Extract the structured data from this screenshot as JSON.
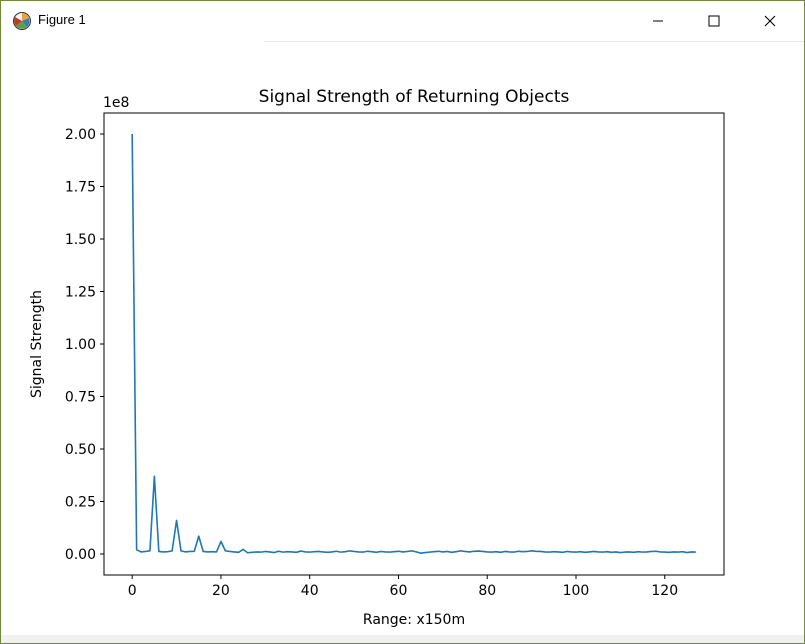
{
  "window": {
    "title": "Figure 1",
    "icons": {
      "app": "matplotlib-figure-icon",
      "minimize": "minimize-icon",
      "maximize": "maximize-icon",
      "close": "close-icon"
    }
  },
  "chart_data": {
    "type": "line",
    "title": "Signal Strength of Returning Objects",
    "xlabel": "Range: x150m",
    "ylabel": "Signal Strength",
    "y_offset_label": "1e8",
    "xlim": [
      -6.35,
      133.35
    ],
    "ylim": [
      -10000000,
      210000000
    ],
    "x_ticks": [
      0,
      20,
      40,
      60,
      80,
      100,
      120
    ],
    "x_tick_labels": [
      "0",
      "20",
      "40",
      "60",
      "80",
      "100",
      "120"
    ],
    "y_ticks": [
      0,
      25000000,
      50000000,
      75000000,
      100000000,
      125000000,
      150000000,
      175000000,
      200000000
    ],
    "y_tick_labels": [
      "0.00",
      "0.25",
      "0.50",
      "0.75",
      "1.00",
      "1.25",
      "1.50",
      "1.75",
      "2.00"
    ],
    "grid": false,
    "line_color": "#1f77b4",
    "series": [
      {
        "x": [
          0,
          1,
          2,
          3,
          4,
          5,
          6,
          7,
          8,
          9,
          10,
          11,
          12,
          13,
          14,
          15,
          16,
          17,
          18,
          19,
          20,
          21,
          22,
          23,
          24,
          25,
          26,
          27,
          28,
          29,
          30,
          31,
          32,
          33,
          34,
          35,
          36,
          37,
          38,
          39,
          40,
          41,
          42,
          43,
          44,
          45,
          46,
          47,
          48,
          49,
          50,
          51,
          52,
          53,
          54,
          55,
          56,
          57,
          58,
          59,
          60,
          61,
          62,
          63,
          64,
          65,
          66,
          67,
          68,
          69,
          70,
          71,
          72,
          73,
          74,
          75,
          76,
          77,
          78,
          79,
          80,
          81,
          82,
          83,
          84,
          85,
          86,
          87,
          88,
          89,
          90,
          91,
          92,
          93,
          94,
          95,
          96,
          97,
          98,
          99,
          100,
          101,
          102,
          103,
          104,
          105,
          106,
          107,
          108,
          109,
          110,
          111,
          112,
          113,
          114,
          115,
          116,
          117,
          118,
          119,
          120,
          121,
          122,
          123,
          124,
          125,
          126,
          127
        ],
        "values": [
          200000000,
          2000000,
          1000000,
          1200000,
          1500000,
          37000000,
          1200000,
          1000000,
          1100000,
          1500000,
          16000000,
          1500000,
          1000000,
          1200000,
          1300000,
          8500000,
          1200000,
          1000000,
          1100000,
          1000000,
          6000000,
          1500000,
          1200000,
          1000000,
          800000,
          2200000,
          600000,
          800000,
          1000000,
          900000,
          1200000,
          1000000,
          700000,
          1300000,
          900000,
          1100000,
          1000000,
          800000,
          1400000,
          1000000,
          900000,
          1100000,
          1200000,
          1000000,
          800000,
          1000000,
          1300000,
          900000,
          1100000,
          1500000,
          1200000,
          1000000,
          900000,
          1300000,
          1100000,
          800000,
          1200000,
          1000000,
          900000,
          1100000,
          1300000,
          1000000,
          1200000,
          1500000,
          1000000,
          400000,
          700000,
          900000,
          1100000,
          1300000,
          1000000,
          1200000,
          800000,
          1100000,
          1500000,
          1200000,
          1000000,
          1300000,
          1400000,
          1200000,
          1000000,
          900000,
          1100000,
          800000,
          1200000,
          1000000,
          900000,
          1300000,
          1100000,
          1200000,
          1500000,
          1300000,
          1200000,
          1000000,
          900000,
          1100000,
          1000000,
          800000,
          1200000,
          1000000,
          900000,
          1100000,
          800000,
          1000000,
          1200000,
          1000000,
          900000,
          1100000,
          800000,
          1000000,
          700000,
          900000,
          1000000,
          800000,
          1100000,
          900000,
          1000000,
          1200000,
          1300000,
          1000000,
          900000,
          800000,
          1000000,
          900000,
          1100000,
          700000,
          1000000,
          900000
        ]
      }
    ]
  }
}
